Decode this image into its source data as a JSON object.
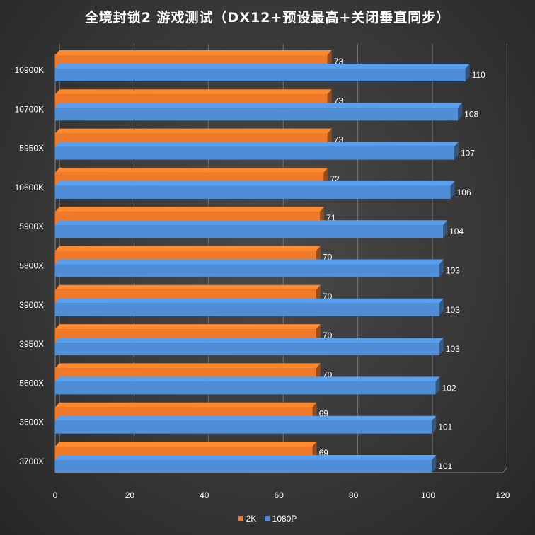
{
  "chart_data": {
    "type": "bar",
    "orientation": "horizontal",
    "style": "3d",
    "title": "全境封锁2 游戏测试（DX12+预设最高+关闭垂直同步）",
    "categories": [
      "10900K",
      "10700K",
      "5950X",
      "10600K",
      "5900X",
      "5800X",
      "3900X",
      "3950X",
      "5600X",
      "3600X",
      "3700X"
    ],
    "series": [
      {
        "name": "2K",
        "color": "#f07a2a",
        "values": [
          73,
          73,
          73,
          72,
          71,
          70,
          70,
          70,
          70,
          69,
          69
        ]
      },
      {
        "name": "1080P",
        "color": "#4f8ed6",
        "values": [
          110,
          108,
          107,
          106,
          104,
          103,
          103,
          103,
          102,
          101,
          101
        ]
      }
    ],
    "x_ticks": [
      0,
      20,
      40,
      60,
      80,
      100,
      120
    ],
    "xlim": [
      0,
      120
    ],
    "grid": true,
    "legend_position": "bottom"
  }
}
